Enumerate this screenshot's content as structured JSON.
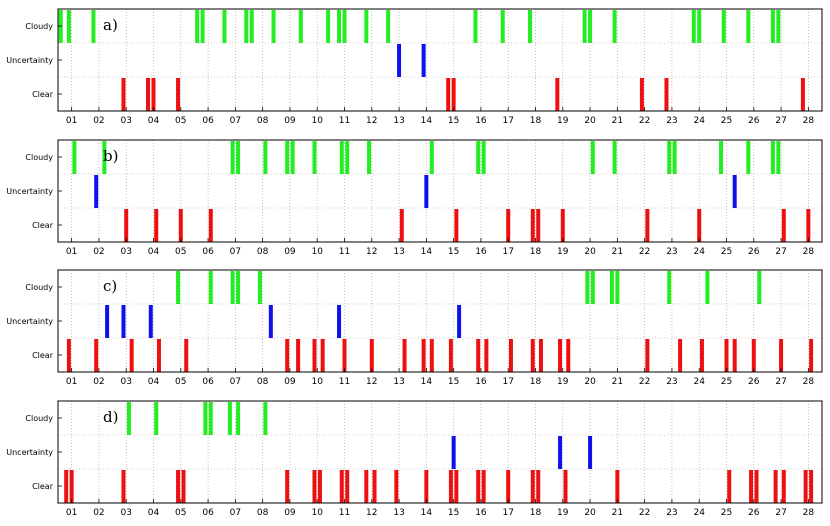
{
  "colors": {
    "Cloudy": "#22ee22",
    "Uncertainty": "#1010ee",
    "Clear": "#ee1010"
  },
  "chart_data": [
    {
      "type": "timeline",
      "panel_label": "a)",
      "categories": [
        "Cloudy",
        "Uncertainty",
        "Clear"
      ],
      "x_ticks": [
        "01",
        "02",
        "03",
        "04",
        "05",
        "06",
        "07",
        "08",
        "09",
        "10",
        "11",
        "12",
        "13",
        "14",
        "15",
        "16",
        "17",
        "18",
        "19",
        "20",
        "21",
        "22",
        "23",
        "24",
        "25",
        "26",
        "27",
        "28"
      ],
      "xlim": [
        0.5,
        28.5
      ],
      "grid": true,
      "events": {
        "Cloudy": [
          0.6,
          0.9,
          1.8,
          5.6,
          5.8,
          6.6,
          7.4,
          7.6,
          8.4,
          9.4,
          10.4,
          10.8,
          11.0,
          11.8,
          12.6,
          15.8,
          16.8,
          17.8,
          19.8,
          20.0,
          20.9,
          23.8,
          24.0,
          24.9,
          25.8,
          26.7,
          26.9
        ],
        "Uncertainty": [
          13.0,
          13.9
        ],
        "Clear": [
          2.9,
          3.8,
          4.0,
          4.9,
          14.8,
          15.0,
          18.8,
          21.9,
          22.8,
          27.8
        ]
      }
    },
    {
      "type": "timeline",
      "panel_label": "b)",
      "categories": [
        "Cloudy",
        "Uncertainty",
        "Clear"
      ],
      "x_ticks": [
        "01",
        "02",
        "03",
        "04",
        "05",
        "06",
        "07",
        "08",
        "09",
        "10",
        "11",
        "12",
        "13",
        "14",
        "15",
        "16",
        "17",
        "18",
        "19",
        "20",
        "21",
        "22",
        "23",
        "24",
        "25",
        "26",
        "27",
        "28"
      ],
      "xlim": [
        0.5,
        28.5
      ],
      "grid": true,
      "events": {
        "Cloudy": [
          1.1,
          2.2,
          6.9,
          7.1,
          8.1,
          8.9,
          9.1,
          9.9,
          10.9,
          11.1,
          11.9,
          14.2,
          15.9,
          16.1,
          20.1,
          20.9,
          22.9,
          23.1,
          24.8,
          25.8,
          26.7,
          26.9
        ],
        "Uncertainty": [
          1.9,
          14.0,
          25.3
        ],
        "Clear": [
          3.0,
          4.1,
          5.0,
          6.1,
          13.1,
          15.1,
          17.0,
          17.9,
          18.1,
          19.0,
          22.1,
          24.0,
          27.1,
          28.0
        ]
      }
    },
    {
      "type": "timeline",
      "panel_label": "c)",
      "categories": [
        "Cloudy",
        "Uncertainty",
        "Clear"
      ],
      "x_ticks": [
        "01",
        "02",
        "03",
        "04",
        "05",
        "06",
        "07",
        "08",
        "09",
        "10",
        "11",
        "12",
        "13",
        "14",
        "15",
        "16",
        "17",
        "18",
        "19",
        "20",
        "21",
        "22",
        "23",
        "24",
        "25",
        "26",
        "27",
        "28"
      ],
      "xlim": [
        0.5,
        28.5
      ],
      "grid": true,
      "events": {
        "Cloudy": [
          4.9,
          6.1,
          6.9,
          7.1,
          7.9,
          19.9,
          20.1,
          20.8,
          21.0,
          22.9,
          24.3,
          26.2
        ],
        "Uncertainty": [
          2.3,
          2.9,
          3.9,
          8.3,
          10.8,
          15.2
        ],
        "Clear": [
          0.9,
          1.9,
          3.2,
          4.2,
          5.2,
          8.9,
          9.3,
          9.9,
          10.2,
          11.0,
          12.0,
          13.2,
          13.9,
          14.2,
          14.9,
          15.9,
          16.2,
          17.1,
          17.9,
          18.2,
          18.9,
          19.2,
          22.1,
          23.3,
          24.1,
          25.0,
          25.3,
          26.0,
          27.0,
          28.1
        ]
      }
    },
    {
      "type": "timeline",
      "panel_label": "d)",
      "categories": [
        "Cloudy",
        "Uncertainty",
        "Clear"
      ],
      "x_ticks": [
        "01",
        "02",
        "03",
        "04",
        "05",
        "06",
        "07",
        "08",
        "09",
        "10",
        "11",
        "12",
        "13",
        "14",
        "15",
        "16",
        "17",
        "18",
        "19",
        "20",
        "21",
        "22",
        "23",
        "24",
        "25",
        "26",
        "27",
        "28"
      ],
      "xlim": [
        0.5,
        28.5
      ],
      "grid": true,
      "events": {
        "Cloudy": [
          3.1,
          4.1,
          5.9,
          6.1,
          6.8,
          7.1,
          8.1
        ],
        "Uncertainty": [
          15.0,
          18.9,
          20.0
        ],
        "Clear": [
          0.8,
          1.0,
          2.9,
          4.9,
          5.1,
          8.9,
          9.9,
          10.1,
          10.9,
          11.1,
          11.8,
          12.1,
          12.9,
          14.0,
          14.9,
          15.1,
          15.9,
          16.1,
          17.0,
          17.9,
          18.1,
          19.1,
          21.0,
          25.1,
          25.9,
          26.1,
          26.8,
          27.1,
          27.9,
          28.1
        ]
      }
    }
  ]
}
